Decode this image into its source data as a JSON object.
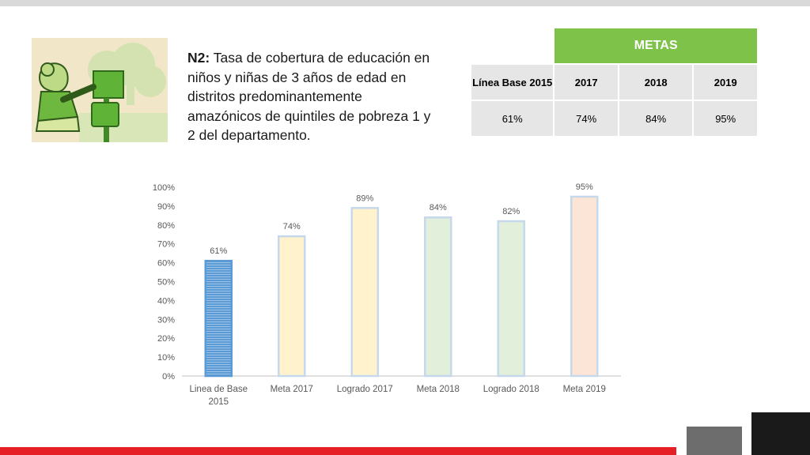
{
  "header": {
    "title_bold": "N2:",
    "title_text": " Tasa de cobertura de educación en niños y niñas de 3 años de edad en distritos predominantemente amazónicos de quintiles de pobreza 1 y 2 del departamento."
  },
  "illustration": {
    "icon": "child-with-mailbox-illustration"
  },
  "goals_table": {
    "header": "METAS",
    "columns": [
      "Línea Base 2015",
      "2017",
      "2018",
      "2019"
    ],
    "values": [
      "61%",
      "74%",
      "84%",
      "95%"
    ]
  },
  "chart_data": {
    "type": "bar",
    "categories": [
      "Linea de Base 2015",
      "Meta 2017",
      "Logrado 2017",
      "Meta 2018",
      "Logrado 2018",
      "Meta 2019"
    ],
    "values": [
      61,
      74,
      89,
      84,
      82,
      95
    ],
    "data_labels": [
      "61%",
      "74%",
      "89%",
      "84%",
      "82%",
      "95%"
    ],
    "ylim": [
      0,
      100
    ],
    "yticks": [
      "0%",
      "10%",
      "20%",
      "30%",
      "40%",
      "50%",
      "60%",
      "70%",
      "80%",
      "90%",
      "100%"
    ],
    "grid": false,
    "colors": [
      "#5b9bd5",
      "#fff2cc",
      "#fff2cc",
      "#e2efda",
      "#e2efda",
      "#fce4d6"
    ],
    "borders": [
      "#5b9bd5",
      "#c6d9ec",
      "#c6d9ec",
      "#c6d9ec",
      "#c6d9ec",
      "#c6d9ec"
    ]
  }
}
